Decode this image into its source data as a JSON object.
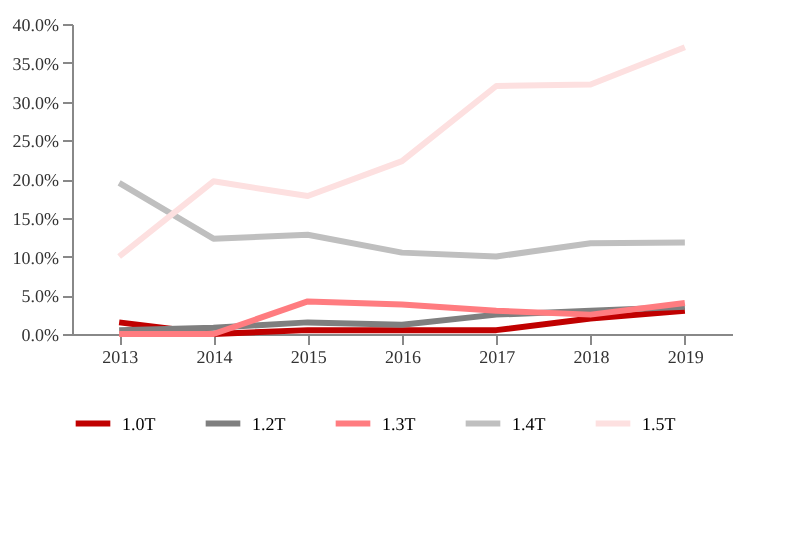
{
  "chart_data": {
    "type": "line",
    "categories": [
      "2013",
      "2014",
      "2015",
      "2016",
      "2017",
      "2018",
      "2019"
    ],
    "series": [
      {
        "name": "1.0T",
        "color": "#c00000",
        "values": [
          1.5,
          0,
          0.5,
          0.5,
          0.5,
          2.0,
          3.0
        ]
      },
      {
        "name": "1.2T",
        "color": "#7f7f7f",
        "values": [
          0.5,
          0.8,
          1.5,
          1.2,
          2.5,
          3.0,
          3.5
        ]
      },
      {
        "name": "1.3T",
        "color": "#ff7c80",
        "values": [
          0,
          0,
          4.2,
          3.8,
          3.0,
          2.5,
          4.0
        ]
      },
      {
        "name": "1.4T",
        "color": "#bfbfbf",
        "values": [
          19.5,
          12.3,
          12.8,
          10.5,
          10.0,
          11.7,
          11.8
        ]
      },
      {
        "name": "1.5T",
        "color": "#fde0e0",
        "values": [
          10.0,
          19.7,
          17.8,
          22.3,
          32.0,
          32.2,
          37.0
        ]
      }
    ],
    "ylim": [
      0,
      40
    ],
    "yticks": [
      {
        "value": 0,
        "label": "0.0%"
      },
      {
        "value": 5,
        "label": "5.0%"
      },
      {
        "value": 10,
        "label": "10.0%"
      },
      {
        "value": 15,
        "label": "15.0%"
      },
      {
        "value": 20,
        "label": "20.0%"
      },
      {
        "value": 25,
        "label": "25.0%"
      },
      {
        "value": 30,
        "label": "30.0%"
      },
      {
        "value": 35,
        "label": "35.0%"
      },
      {
        "value": 40,
        "label": "40.0%"
      }
    ],
    "grid": false,
    "legend": "bottom",
    "marker": "none",
    "line_style": "solid"
  }
}
